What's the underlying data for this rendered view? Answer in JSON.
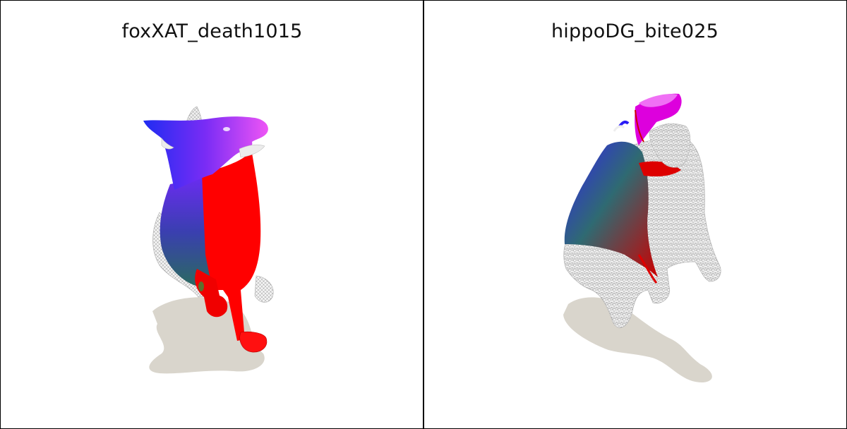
{
  "panels": [
    {
      "title": "foxXAT_death1015",
      "subject_icon": "fox-mesh-icon",
      "colors": {
        "shadow": "#d9d5cc",
        "red": "#ff0000",
        "blue": "#2a1cf5",
        "magenta": "#e24cf5",
        "teal": "#2f6a72",
        "mesh": "#c9c9c9"
      }
    },
    {
      "title": "hippoDG_bite025",
      "subject_icon": "hippo-mesh-icon",
      "colors": {
        "shadow": "#d9d5cc",
        "red": "#e00000",
        "blue": "#2a1cf5",
        "magenta": "#e060f0",
        "teal": "#2f6a72",
        "mesh": "#d0d0d0"
      }
    }
  ]
}
